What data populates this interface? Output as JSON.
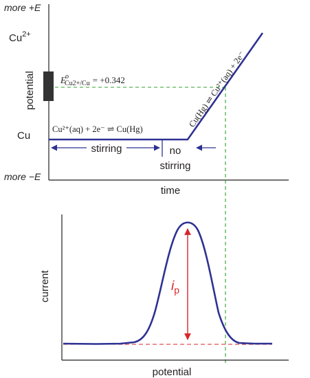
{
  "colors": {
    "curve": "#2e3192",
    "text": "#231f20",
    "guide": "#2ca02c",
    "peak": "#d6262b",
    "electrode": "#333333"
  },
  "top_panel": {
    "y_top_label": "more +E",
    "y_bottom_label": "more −E",
    "cu2_label_base": "Cu",
    "cu2_label_charge": "2+",
    "cu_label": "Cu",
    "y_axis_label": "potential",
    "x_axis_label": "time",
    "e0_symbol": "E",
    "e0_degree": "o",
    "e0_subscript": "Cu2+/Cu",
    "e0_value": "= +0.342",
    "reduction_reaction": "Cu²⁺(aq) + 2e⁻ ⇌ Cu(Hg)",
    "oxidation_reaction": "Cu(Hg) ⇌ Cu²⁺(aq) + 2e⁻",
    "stirring_label": "stirring",
    "no_label": "no",
    "no_stirring_label": "stirring",
    "electrode_icon": "electrode-bar-icon"
  },
  "bottom_panel": {
    "y_axis_label": "current",
    "x_axis_label": "potential",
    "peak_label_base": "i",
    "peak_label_sub": "p"
  }
}
